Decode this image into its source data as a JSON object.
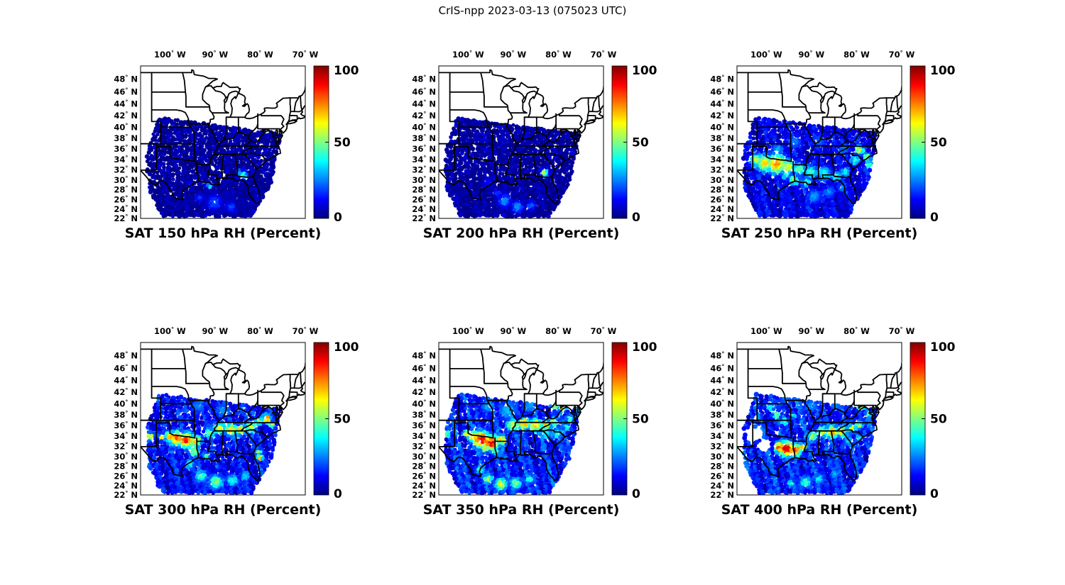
{
  "title": "CrIS-npp 2023-03-13 (075023 UTC)",
  "colors": {
    "background": "#ffffff",
    "map_outline": "#000000",
    "frame": "#000000",
    "text": "#000000"
  },
  "basemap": {
    "region": "eastern-united-states",
    "layers": "state-borders-and-coastlines"
  },
  "chart_data": {
    "type": "scatter",
    "subtype": "satellite-swath-map-grid",
    "grid": {
      "rows": 2,
      "cols": 3
    },
    "projection": {
      "kind": "mercator",
      "lon_range": [
        -106.5,
        -70
      ],
      "lat_range": [
        22,
        50
      ]
    },
    "axes": {
      "lon_ticks": {
        "values": [
          -100,
          -90,
          -80,
          -70
        ],
        "labels": [
          "100° W",
          "90° W",
          "80° W",
          "70° W"
        ]
      },
      "lat_ticks": {
        "values": [
          48,
          46,
          44,
          42,
          40,
          38,
          36,
          34,
          32,
          30,
          28,
          26,
          24,
          22
        ],
        "labels": [
          "48° N",
          "46° N",
          "44° N",
          "42° N",
          "40° N",
          "38° N",
          "36° N",
          "34° N",
          "32° N",
          "30° N",
          "28° N",
          "26° N",
          "24° N",
          "22° N"
        ]
      },
      "grid": false
    },
    "colorbar": {
      "min": 0,
      "max": 100,
      "colormap": "jet",
      "position": "right",
      "ticks": [
        {
          "v": 0,
          "label": "0"
        },
        {
          "v": 50,
          "label": "50"
        },
        {
          "v": 100,
          "label": "100"
        }
      ]
    },
    "swath_edges": {
      "left": [
        [
          0.112,
          0.335
        ],
        [
          0.035,
          0.565
        ],
        [
          0.042,
          0.8
        ],
        [
          0.134,
          0.988
        ]
      ],
      "right": [
        [
          0.855,
          0.44
        ],
        [
          0.8,
          0.755
        ],
        [
          0.672,
          0.988
        ]
      ]
    },
    "panels": [
      {
        "title": "SAT 150 hPa RH (Percent)",
        "level_hPa": 150,
        "base_rh": 3,
        "streak_amp": 2.5,
        "seed": 150,
        "holes": [],
        "hotspots": [
          [
            0.62,
            0.72,
            4,
            46
          ],
          [
            0.6,
            0.7,
            3,
            30
          ],
          [
            0.42,
            0.79,
            3,
            36
          ],
          [
            0.45,
            0.9,
            7,
            22
          ],
          [
            0.36,
            0.87,
            4,
            18
          ],
          [
            0.55,
            0.93,
            5,
            20
          ],
          [
            0.3,
            0.78,
            3,
            16
          ]
        ]
      },
      {
        "title": "SAT 200 hPa RH (Percent)",
        "level_hPa": 200,
        "base_rh": 3,
        "streak_amp": 3,
        "seed": 200,
        "holes": [],
        "hotspots": [
          [
            0.645,
            0.705,
            3.5,
            64
          ],
          [
            0.4,
            0.89,
            6,
            28
          ],
          [
            0.48,
            0.93,
            5,
            30
          ],
          [
            0.3,
            0.77,
            5,
            15
          ],
          [
            0.56,
            0.92,
            4,
            25
          ],
          [
            0.36,
            0.84,
            4,
            18
          ]
        ]
      },
      {
        "title": "SAT 250 hPa RH (Percent)",
        "level_hPa": 250,
        "base_rh": 10,
        "streak_amp": 8,
        "seed": 250,
        "holes": [],
        "hotspots": [
          [
            0.12,
            0.62,
            6,
            60
          ],
          [
            0.17,
            0.64,
            8,
            68
          ],
          [
            0.24,
            0.645,
            9,
            76
          ],
          [
            0.31,
            0.66,
            7,
            62
          ],
          [
            0.38,
            0.68,
            6,
            50
          ],
          [
            0.45,
            0.7,
            7,
            45
          ],
          [
            0.53,
            0.71,
            7,
            42
          ],
          [
            0.6,
            0.73,
            5,
            45
          ],
          [
            0.66,
            0.7,
            5,
            40
          ],
          [
            0.72,
            0.62,
            5,
            45
          ],
          [
            0.745,
            0.555,
            4,
            70
          ],
          [
            0.79,
            0.6,
            4,
            55
          ],
          [
            0.8,
            0.65,
            4,
            48
          ],
          [
            0.35,
            0.75,
            5,
            55
          ],
          [
            0.42,
            0.77,
            4,
            50
          ],
          [
            0.3,
            0.72,
            4,
            45
          ],
          [
            0.47,
            0.86,
            7,
            30
          ],
          [
            0.56,
            0.83,
            6,
            28
          ],
          [
            0.64,
            0.8,
            5,
            30
          ],
          [
            0.25,
            0.55,
            6,
            30
          ],
          [
            0.35,
            0.5,
            8,
            25
          ],
          [
            0.5,
            0.5,
            9,
            22
          ],
          [
            0.65,
            0.55,
            7,
            25
          ]
        ]
      },
      {
        "title": "SAT 300 hPa RH (Percent)",
        "level_hPa": 300,
        "base_rh": 13,
        "streak_amp": 10,
        "seed": 300,
        "holes": [],
        "hotspots": [
          [
            0.06,
            0.62,
            4,
            65
          ],
          [
            0.13,
            0.62,
            3,
            70
          ],
          [
            0.18,
            0.62,
            5,
            75
          ],
          [
            0.22,
            0.63,
            7,
            82
          ],
          [
            0.28,
            0.645,
            7,
            88
          ],
          [
            0.34,
            0.65,
            5,
            72
          ],
          [
            0.42,
            0.6,
            5,
            50
          ],
          [
            0.48,
            0.565,
            6,
            62
          ],
          [
            0.55,
            0.575,
            6,
            68
          ],
          [
            0.61,
            0.575,
            5,
            72
          ],
          [
            0.67,
            0.555,
            5,
            62
          ],
          [
            0.72,
            0.52,
            4,
            58
          ],
          [
            0.765,
            0.5,
            4,
            85
          ],
          [
            0.8,
            0.545,
            3,
            60
          ],
          [
            0.72,
            0.72,
            3,
            55
          ],
          [
            0.725,
            0.76,
            3,
            70
          ],
          [
            0.33,
            0.72,
            5,
            55
          ],
          [
            0.4,
            0.75,
            4,
            45
          ],
          [
            0.3,
            0.8,
            5,
            42
          ],
          [
            0.37,
            0.88,
            6,
            48
          ],
          [
            0.46,
            0.92,
            7,
            52
          ],
          [
            0.56,
            0.91,
            6,
            42
          ],
          [
            0.64,
            0.88,
            5,
            38
          ],
          [
            0.25,
            0.67,
            4,
            50
          ],
          [
            0.5,
            0.45,
            8,
            28
          ],
          [
            0.35,
            0.42,
            8,
            26
          ],
          [
            0.62,
            0.44,
            6,
            25
          ],
          [
            0.28,
            0.35,
            6,
            20
          ],
          [
            0.45,
            0.35,
            7,
            18
          ]
        ]
      },
      {
        "title": "SAT 350 hPa RH (Percent)",
        "level_hPa": 350,
        "base_rh": 15,
        "streak_amp": 11,
        "seed": 350,
        "holes": [],
        "hotspots": [
          [
            0.05,
            0.6,
            3,
            55
          ],
          [
            0.17,
            0.6,
            3,
            70
          ],
          [
            0.21,
            0.62,
            5,
            78
          ],
          [
            0.26,
            0.64,
            8,
            92
          ],
          [
            0.32,
            0.66,
            7,
            95
          ],
          [
            0.38,
            0.645,
            5,
            72
          ],
          [
            0.45,
            0.545,
            6,
            60
          ],
          [
            0.52,
            0.535,
            6,
            72
          ],
          [
            0.59,
            0.545,
            6,
            75
          ],
          [
            0.65,
            0.545,
            5,
            70
          ],
          [
            0.7,
            0.52,
            4,
            62
          ],
          [
            0.71,
            0.4,
            5,
            72
          ],
          [
            0.755,
            0.43,
            4,
            68
          ],
          [
            0.66,
            0.37,
            4,
            55
          ],
          [
            0.8,
            0.5,
            4,
            50
          ],
          [
            0.28,
            0.7,
            4,
            58
          ],
          [
            0.35,
            0.72,
            4,
            48
          ],
          [
            0.3,
            0.9,
            5,
            58
          ],
          [
            0.38,
            0.935,
            6,
            62
          ],
          [
            0.47,
            0.93,
            6,
            52
          ],
          [
            0.55,
            0.9,
            5,
            45
          ],
          [
            0.25,
            0.84,
            4,
            48
          ],
          [
            0.42,
            0.45,
            10,
            32
          ],
          [
            0.3,
            0.42,
            8,
            30
          ],
          [
            0.55,
            0.42,
            8,
            28
          ],
          [
            0.65,
            0.6,
            6,
            40
          ],
          [
            0.72,
            0.6,
            5,
            45
          ],
          [
            0.78,
            0.56,
            4,
            42
          ]
        ]
      },
      {
        "title": "SAT 400 hPa RH (Percent)",
        "level_hPa": 400,
        "base_rh": 15,
        "streak_amp": 11,
        "seed": 400,
        "holes": [
          [
            0.1,
            0.6,
            12
          ],
          [
            0.17,
            0.68,
            9
          ]
        ],
        "hotspots": [
          [
            0.26,
            0.69,
            5,
            86
          ],
          [
            0.3,
            0.7,
            7,
            95
          ],
          [
            0.35,
            0.71,
            6,
            92
          ],
          [
            0.4,
            0.69,
            4,
            72
          ],
          [
            0.46,
            0.62,
            5,
            55
          ],
          [
            0.52,
            0.585,
            5,
            68
          ],
          [
            0.58,
            0.59,
            6,
            75
          ],
          [
            0.64,
            0.585,
            5,
            72
          ],
          [
            0.7,
            0.565,
            4,
            65
          ],
          [
            0.745,
            0.545,
            4,
            60
          ],
          [
            0.71,
            0.38,
            5,
            68
          ],
          [
            0.755,
            0.42,
            4,
            72
          ],
          [
            0.66,
            0.35,
            4,
            55
          ],
          [
            0.8,
            0.47,
            3,
            50
          ],
          [
            0.24,
            0.48,
            4,
            55
          ],
          [
            0.29,
            0.52,
            4,
            50
          ],
          [
            0.34,
            0.48,
            3,
            45
          ],
          [
            0.2,
            0.43,
            4,
            40
          ],
          [
            0.42,
            0.92,
            6,
            45
          ],
          [
            0.5,
            0.9,
            5,
            40
          ],
          [
            0.33,
            0.93,
            4,
            42
          ],
          [
            0.6,
            0.87,
            4,
            35
          ],
          [
            0.45,
            0.42,
            8,
            28
          ],
          [
            0.3,
            0.38,
            7,
            25
          ],
          [
            0.6,
            0.42,
            7,
            26
          ],
          [
            0.68,
            0.65,
            5,
            35
          ],
          [
            0.74,
            0.63,
            4,
            38
          ]
        ]
      }
    ]
  }
}
